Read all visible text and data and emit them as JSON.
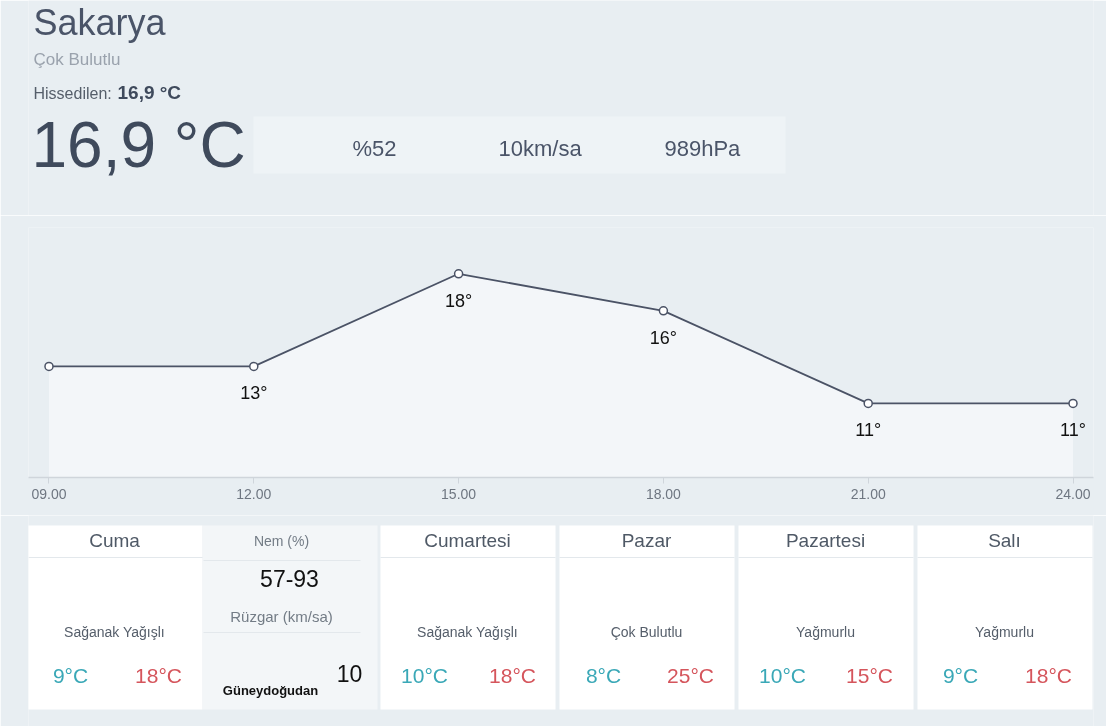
{
  "chart_data": {
    "type": "area",
    "title": "Sakarya",
    "subtitle": "Çok Bulutlu",
    "x": [
      9,
      12,
      15,
      18,
      21,
      24
    ],
    "xlim": [
      8.7,
      24.3
    ],
    "xticks": [
      {
        "value": 9,
        "label": "09.00"
      },
      {
        "value": 12,
        "label": "12.00"
      },
      {
        "value": 15,
        "label": "15.00"
      },
      {
        "value": 18,
        "label": "18.00"
      },
      {
        "value": 21,
        "label": "21.00"
      },
      {
        "value": 24,
        "label": "24.00"
      }
    ],
    "ylim": [
      7,
      20.5
    ],
    "values": [
      13,
      13,
      18,
      16,
      11,
      11
    ],
    "value_labels": [
      null,
      "13°",
      "18°",
      "16°",
      "11°",
      "11°"
    ],
    "color": "#4b5366",
    "marker": "circle",
    "tick_labels": "x",
    "annotations": [
      "Hissedilen:",
      "16,9 °C",
      "16,9 °C",
      "%52",
      "10km/sa",
      "989hPa",
      "Cuma",
      "Sağanak Yağışlı",
      "9°C",
      "18°C",
      "Nem (%)",
      "57-93",
      "Rüzgar (km/sa)",
      "10",
      "Güneydoğudan",
      "Cumartesi",
      "Sağanak Yağışlı",
      "10°C",
      "18°C",
      "Pazar",
      "Çok Bulutlu",
      "8°C",
      "25°C",
      "Pazartesi",
      "Yağmurlu",
      "10°C",
      "15°C",
      "Salı",
      "Yağmurlu",
      "9°C",
      "18°C"
    ]
  }
}
